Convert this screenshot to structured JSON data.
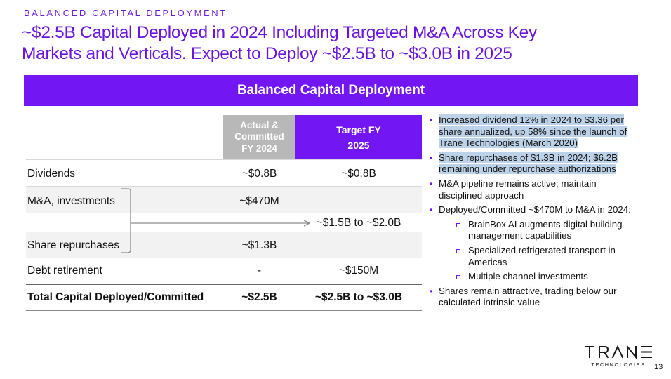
{
  "header": {
    "kicker": "BALANCED CAPITAL DEPLOYMENT",
    "title_line1": "~$2.5B Capital Deployed in 2024 Including Targeted M&A Across Key",
    "title_line2": "Markets and Verticals. Expect to Deploy ~$2.5B to ~$3.0B in 2025"
  },
  "banner": {
    "title": "Balanced Capital Deployment"
  },
  "table": {
    "col_actual_line1": "Actual &",
    "col_actual_line2": "Committed",
    "col_actual_line3": "FY 2024",
    "col_target_line1": "Target FY",
    "col_target_line2": "2025",
    "rows": [
      {
        "label": "Dividends",
        "actual": "~$0.8B",
        "target": "~$0.8B"
      },
      {
        "label": "M&A, investments",
        "actual": "~$470M",
        "target": ""
      },
      {
        "label": "",
        "actual": "",
        "target": "~$1.5B to ~$2.0B"
      },
      {
        "label": "Share repurchases",
        "actual": "~$1.3B",
        "target": ""
      },
      {
        "label": "Debt retirement",
        "actual": "-",
        "target": "~$150M"
      },
      {
        "label": "Total Capital Deployed/Committed",
        "actual": "~$2.5B",
        "target": "~$2.5B to ~$3.0B"
      }
    ]
  },
  "bullets": {
    "b1": "Increased dividend 12% in 2024 to $3.36 per share annualized, up 58% since the launch of Trane Technologies (March 2020)",
    "b2": "Share repurchases of $1.3B in 2024; $6.2B remaining under repurchase authorizations",
    "b3": "M&A pipeline remains active; maintain disciplined approach",
    "b4": "Deployed/Committed ~$470M to M&A in 2024:",
    "sub1": "BrainBox AI augments digital building management capabilities",
    "sub2": "Specialized refrigerated transport in Americas",
    "sub3": "Multiple channel investments",
    "b5": "Shares remain attractive, trading below our calculated intrinsic value"
  },
  "footer": {
    "logo_word": "TRANE",
    "logo_sub": "TECHNOLOGIES",
    "page_number": "13"
  },
  "colors": {
    "accent": "#7216f4",
    "title": "#6a14e0",
    "header_gray": "#b8b8b8",
    "row_shade": "#f2f2f2",
    "highlight": "#bcd2e8"
  }
}
